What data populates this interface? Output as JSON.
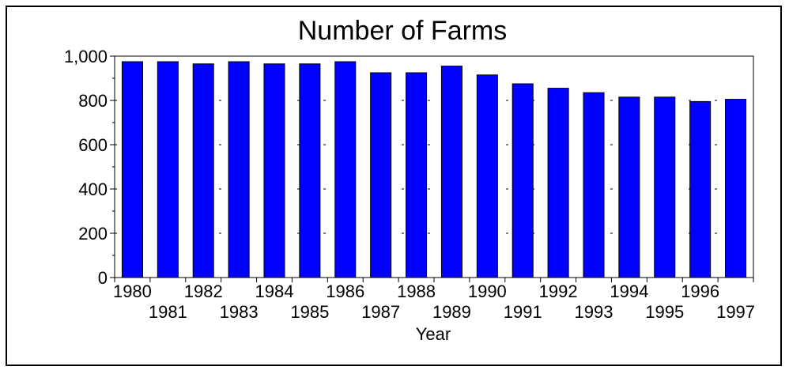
{
  "chart_data": {
    "type": "bar",
    "title": "Number of Farms",
    "xlabel": "Year",
    "ylabel": "",
    "ylim": [
      0,
      1000
    ],
    "yticks": [
      0,
      200,
      400,
      600,
      800,
      1000
    ],
    "ytick_labels": [
      "0",
      "200",
      "400",
      "600",
      "800",
      "1,000"
    ],
    "grid": "dashed horizontal at major ticks",
    "legend": "none",
    "colors": {
      "bar": "#0000ff",
      "bar_edge": "#000000",
      "grid": "#000000"
    },
    "categories": [
      "1980",
      "1981",
      "1982",
      "1983",
      "1984",
      "1985",
      "1986",
      "1987",
      "1988",
      "1989",
      "1990",
      "1991",
      "1992",
      "1993",
      "1994",
      "1995",
      "1996",
      "1997"
    ],
    "values": [
      975,
      975,
      965,
      975,
      965,
      965,
      975,
      925,
      925,
      955,
      915,
      875,
      855,
      835,
      815,
      815,
      795,
      805
    ]
  }
}
